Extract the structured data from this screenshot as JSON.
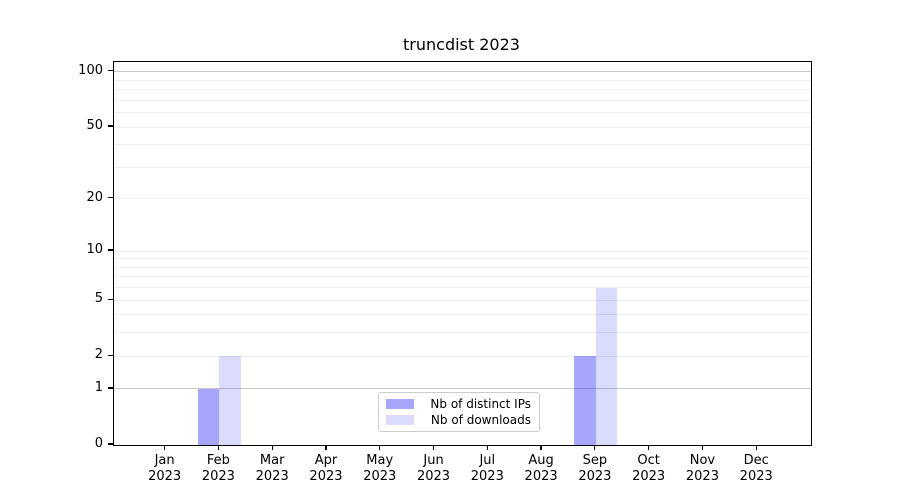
{
  "chart_data": {
    "type": "bar",
    "title": "truncdist 2023",
    "categories": [
      "Jan",
      "Feb",
      "Mar",
      "Apr",
      "May",
      "Jun",
      "Jul",
      "Aug",
      "Sep",
      "Oct",
      "Nov",
      "Dec"
    ],
    "category_year": "2023",
    "series": [
      {
        "name": "Nb of distinct IPs",
        "color": "rgba(0,0,240,0.35)",
        "values": [
          0,
          1,
          0,
          0,
          0,
          0,
          0,
          0,
          2,
          0,
          0,
          0
        ]
      },
      {
        "name": "Nb of downloads",
        "color": "rgba(0,0,240,0.14)",
        "values": [
          0,
          2,
          0,
          0,
          0,
          0,
          0,
          0,
          6,
          0,
          0,
          0
        ]
      }
    ],
    "yscale": "log1p",
    "ylim": [
      0,
      100
    ],
    "ylim_render_max": 113,
    "xlim": [
      -0.96,
      12.0
    ],
    "yticks": [
      0,
      1,
      2,
      5,
      10,
      20,
      50,
      100
    ],
    "grid_values_light": [
      2,
      3,
      4,
      5,
      6,
      7,
      8,
      9,
      10,
      20,
      30,
      40,
      50,
      60,
      70,
      80,
      90
    ],
    "grid_values_dark": [
      1,
      100
    ],
    "grid_on": true,
    "legend_position": "lower-center",
    "colors": {
      "grid_light": "#ededed",
      "grid_dark": "#c8c8c8",
      "spine": "#000000",
      "text": "#000000",
      "legend_border": "#cccccc",
      "background": "#ffffff"
    }
  }
}
